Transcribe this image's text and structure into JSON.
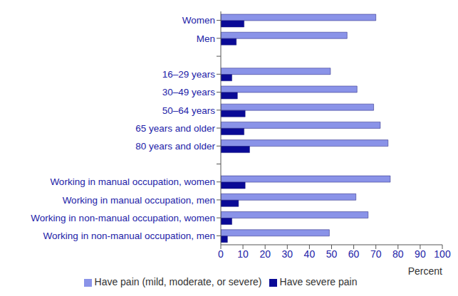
{
  "chart_data": {
    "type": "bar",
    "orientation": "horizontal",
    "categories": [
      "Women",
      "Men",
      null,
      "16–29 years",
      "30–49 years",
      "50–64 years",
      "65 years and older",
      "80 years and older",
      null,
      "Working in manual occupation, women",
      "Working in manual occupation, men",
      "Working in non-manual occupation, women",
      "Working in non-manual occupation, men"
    ],
    "series": [
      {
        "name": "Have pain (mild, moderate, or severe)",
        "color": "#8a93e8",
        "values": [
          70,
          57,
          null,
          49.5,
          61.5,
          69,
          72,
          75.5,
          null,
          76.5,
          61,
          66.5,
          49
        ]
      },
      {
        "name": "Have severe pain",
        "color": "#0a0a96",
        "values": [
          10.5,
          7,
          null,
          5,
          7.5,
          11,
          10.5,
          13,
          null,
          11,
          8,
          5,
          3
        ]
      }
    ],
    "x_label": "Percent",
    "xlim": [
      0,
      100
    ],
    "xticks": [
      0,
      10,
      20,
      30,
      40,
      50,
      60,
      70,
      80,
      90,
      100
    ],
    "grid": false,
    "legend": "bottom"
  }
}
